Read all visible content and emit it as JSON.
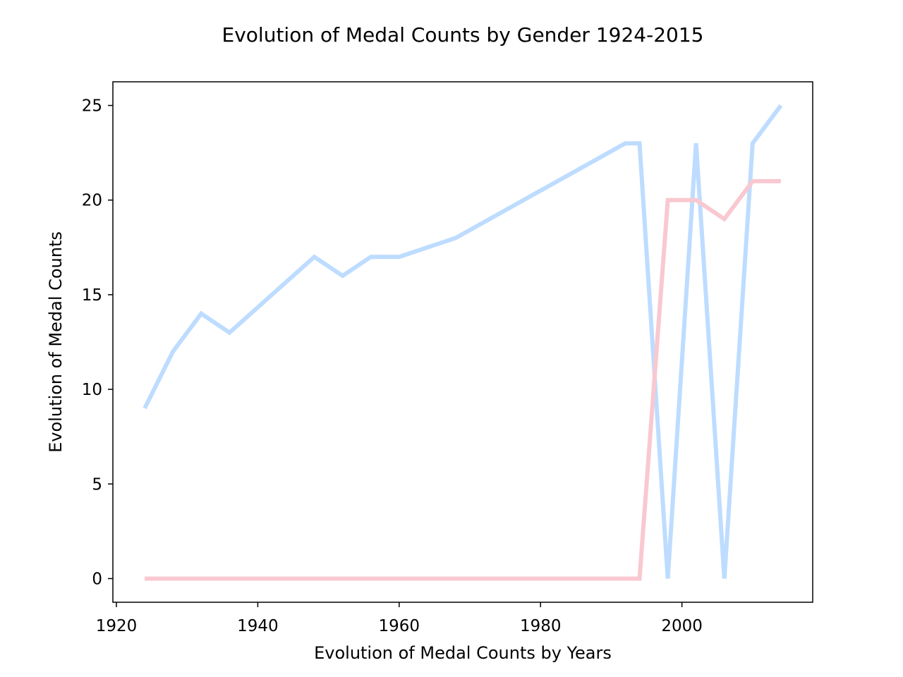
{
  "chart_data": {
    "type": "line",
    "title": "Evolution of Medal Counts by Gender 1924-2015",
    "xlabel": "Evolution of Medal Counts by Years",
    "ylabel": "Evolution of Medal Counts",
    "xlim": [
      1919.5,
      2018.5
    ],
    "ylim": [
      -1.25,
      26.25
    ],
    "x_ticks": [
      1920,
      1940,
      1960,
      1980,
      2000
    ],
    "y_ticks": [
      0,
      5,
      10,
      15,
      20,
      25
    ],
    "grid": false,
    "legend": "none",
    "series": [
      {
        "color": "#bddcff",
        "x": [
          1924,
          1928,
          1932,
          1936,
          1948,
          1952,
          1956,
          1960,
          1968,
          1992,
          1994,
          1998,
          2002,
          2006,
          2010,
          2014
        ],
        "y": [
          9,
          12,
          14,
          13,
          17,
          16,
          17,
          17,
          18,
          23,
          23,
          0,
          23,
          0,
          23,
          25
        ]
      },
      {
        "color": "#f9c8d0",
        "x": [
          1924,
          1928,
          1932,
          1936,
          1948,
          1952,
          1956,
          1960,
          1968,
          1992,
          1994,
          1998,
          2002,
          2006,
          2010,
          2014
        ],
        "y": [
          0,
          0,
          0,
          0,
          0,
          0,
          0,
          0,
          0,
          0,
          0,
          20,
          20,
          19,
          21,
          21
        ]
      }
    ]
  }
}
